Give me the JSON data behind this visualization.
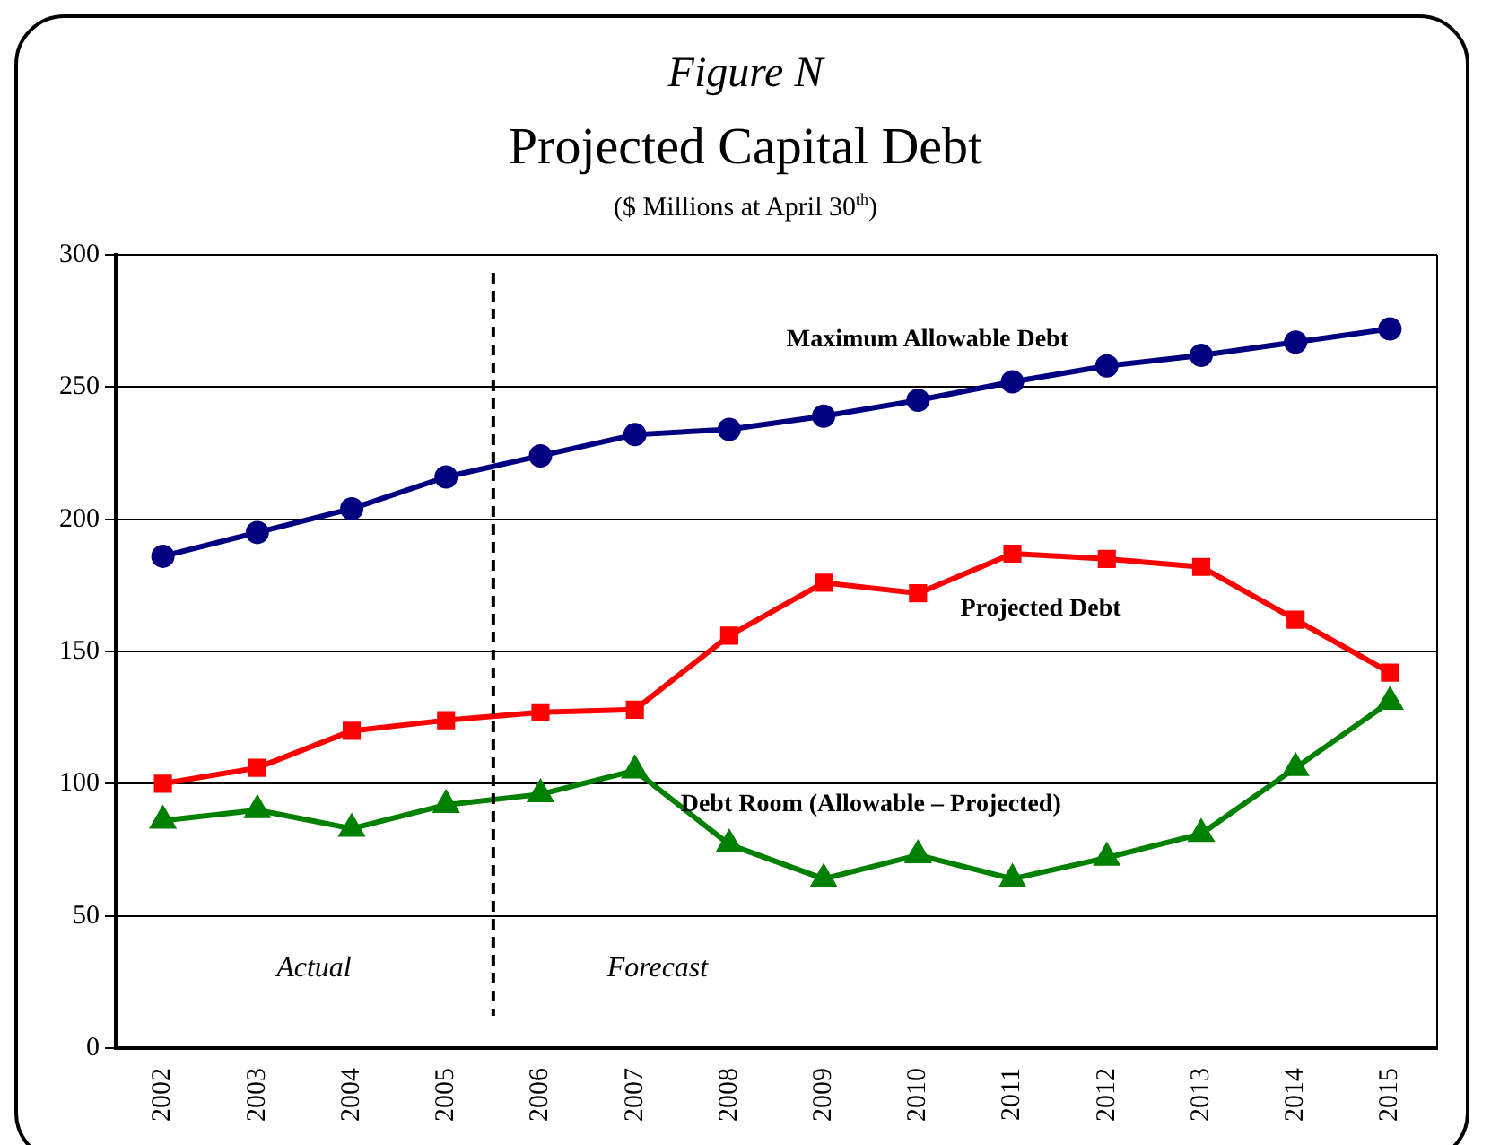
{
  "chart_data": {
    "type": "line",
    "title": "Figure N",
    "subtitle": "Projected Capital Debt",
    "xlabel": "($ Millions at April 30$^{th}$)",
    "x": [
      2002,
      2003,
      2004,
      2005,
      2006,
      2007,
      2008,
      2009,
      2010,
      2011,
      2012,
      2013,
      2014,
      2015
    ],
    "xlim": [
      2001.5,
      2015.5
    ],
    "xticks": [
      2002,
      2003,
      2004,
      2005,
      2006,
      2007,
      2008,
      2009,
      2010,
      2011,
      2012,
      2013,
      2014,
      2015
    ],
    "ylim": [
      0,
      300
    ],
    "yticks": [
      0,
      50,
      100,
      150,
      200,
      250,
      300
    ],
    "grid": "y",
    "legend": false,
    "series": [
      {
        "name": "Maximum Allowable Debt",
        "color": "#000080",
        "marker": "circle",
        "values": [
          186,
          195,
          204,
          216,
          224,
          232,
          234,
          239,
          245,
          252,
          258,
          262,
          267,
          272
        ]
      },
      {
        "name": "Projected Debt",
        "color": "#ff0000",
        "marker": "square",
        "values": [
          100,
          106,
          120,
          124,
          127,
          128,
          156,
          176,
          172,
          187,
          185,
          182,
          162,
          142
        ]
      },
      {
        "name": "Debt Room (Allowable – Projected)",
        "color": "#008000",
        "marker": "triangle",
        "values": [
          86,
          90,
          83,
          92,
          96,
          105,
          77,
          64,
          73,
          64,
          72,
          81,
          106,
          131
        ]
      }
    ],
    "ref_lines": [
      {
        "axis": "x",
        "value": 2005.5,
        "color": "#000000",
        "line_style": "dashed"
      }
    ],
    "annotations": [
      "Actual",
      "Forecast"
    ]
  }
}
